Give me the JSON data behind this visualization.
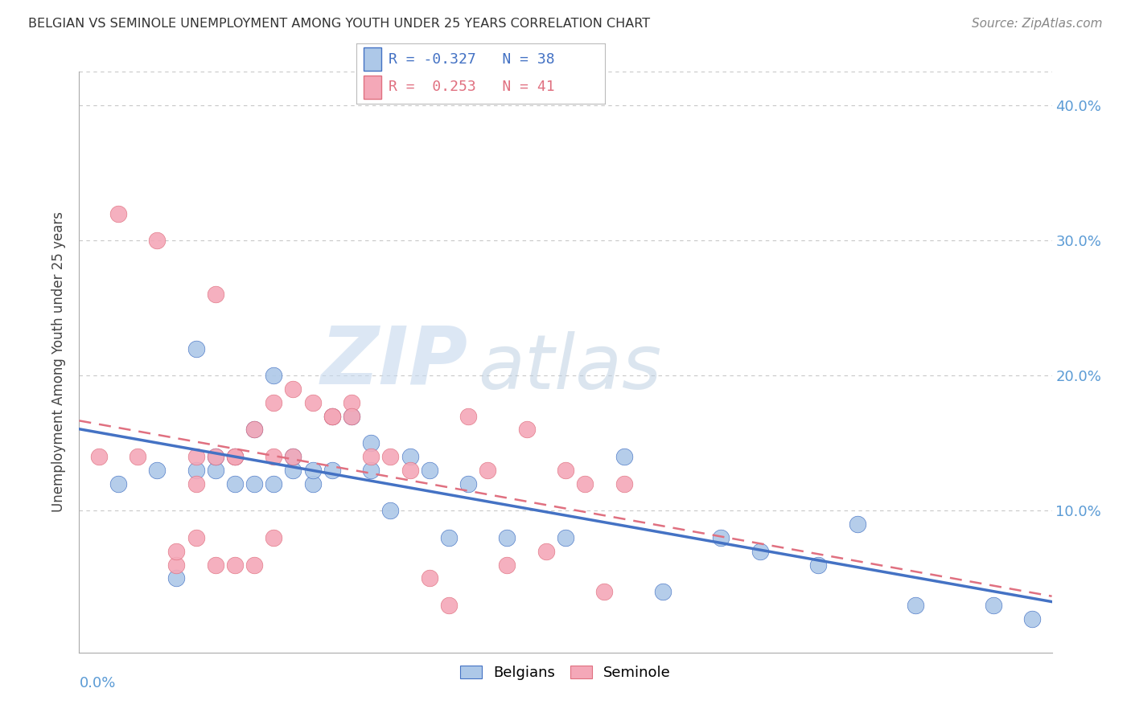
{
  "title": "BELGIAN VS SEMINOLE UNEMPLOYMENT AMONG YOUTH UNDER 25 YEARS CORRELATION CHART",
  "source": "Source: ZipAtlas.com",
  "ylabel": "Unemployment Among Youth under 25 years",
  "ytick_values": [
    0.0,
    0.1,
    0.2,
    0.3,
    0.4
  ],
  "xlim": [
    0.0,
    0.5
  ],
  "ylim": [
    -0.005,
    0.425
  ],
  "belgians_color": "#adc8e8",
  "seminole_color": "#f4a8b8",
  "belgians_line_color": "#4472c4",
  "seminole_line_color": "#e07080",
  "watermark_zip": "ZIP",
  "watermark_atlas": "atlas",
  "belgians_x": [
    0.02,
    0.04,
    0.05,
    0.06,
    0.06,
    0.07,
    0.07,
    0.08,
    0.08,
    0.09,
    0.09,
    0.1,
    0.1,
    0.11,
    0.11,
    0.12,
    0.12,
    0.13,
    0.13,
    0.14,
    0.15,
    0.15,
    0.16,
    0.17,
    0.18,
    0.19,
    0.2,
    0.22,
    0.25,
    0.28,
    0.3,
    0.33,
    0.35,
    0.38,
    0.4,
    0.43,
    0.47,
    0.49
  ],
  "belgians_y": [
    0.12,
    0.13,
    0.05,
    0.13,
    0.22,
    0.13,
    0.14,
    0.12,
    0.14,
    0.12,
    0.16,
    0.12,
    0.2,
    0.13,
    0.14,
    0.12,
    0.13,
    0.13,
    0.17,
    0.17,
    0.13,
    0.15,
    0.1,
    0.14,
    0.13,
    0.08,
    0.12,
    0.08,
    0.08,
    0.14,
    0.04,
    0.08,
    0.07,
    0.06,
    0.09,
    0.03,
    0.03,
    0.02
  ],
  "seminole_x": [
    0.01,
    0.02,
    0.03,
    0.04,
    0.05,
    0.05,
    0.06,
    0.06,
    0.06,
    0.07,
    0.07,
    0.07,
    0.08,
    0.08,
    0.08,
    0.09,
    0.09,
    0.1,
    0.1,
    0.1,
    0.11,
    0.11,
    0.12,
    0.13,
    0.13,
    0.14,
    0.14,
    0.15,
    0.16,
    0.17,
    0.18,
    0.19,
    0.2,
    0.21,
    0.22,
    0.23,
    0.24,
    0.25,
    0.26,
    0.27,
    0.28
  ],
  "seminole_y": [
    0.14,
    0.32,
    0.14,
    0.3,
    0.06,
    0.07,
    0.08,
    0.12,
    0.14,
    0.06,
    0.14,
    0.26,
    0.06,
    0.14,
    0.14,
    0.06,
    0.16,
    0.08,
    0.14,
    0.18,
    0.14,
    0.19,
    0.18,
    0.17,
    0.17,
    0.18,
    0.17,
    0.14,
    0.14,
    0.13,
    0.05,
    0.03,
    0.17,
    0.13,
    0.06,
    0.16,
    0.07,
    0.13,
    0.12,
    0.04,
    0.12
  ]
}
